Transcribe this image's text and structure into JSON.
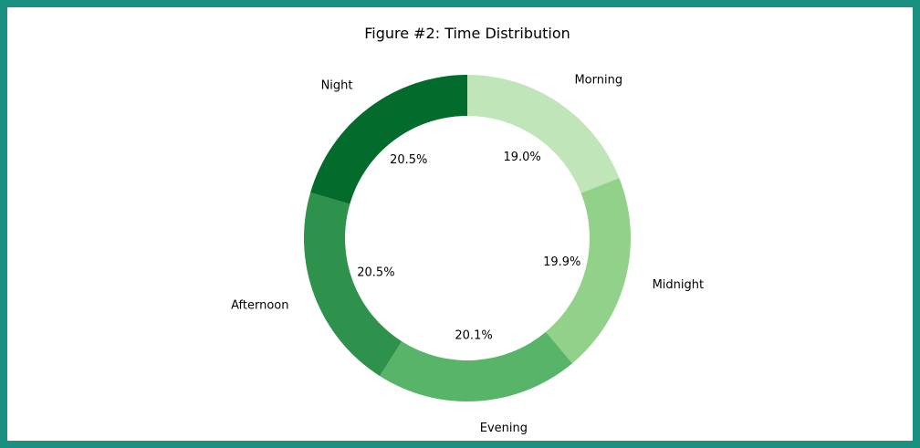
{
  "chart_data": {
    "type": "pie",
    "title": "Figure #2: Time Distribution",
    "donut": true,
    "start_angle_deg": 90,
    "direction": "clockwise",
    "categories": [
      "Morning",
      "Midnight",
      "Evening",
      "Afternoon",
      "Night"
    ],
    "values": [
      19.0,
      19.9,
      20.1,
      20.5,
      20.5
    ],
    "percent_labels": [
      "19.0%",
      "19.9%",
      "20.1%",
      "20.5%",
      "20.5%"
    ],
    "colors": [
      "#c0e5b9",
      "#91d18a",
      "#58b468",
      "#2e924c",
      "#036c2d"
    ],
    "frame_color": "#1a9080"
  }
}
